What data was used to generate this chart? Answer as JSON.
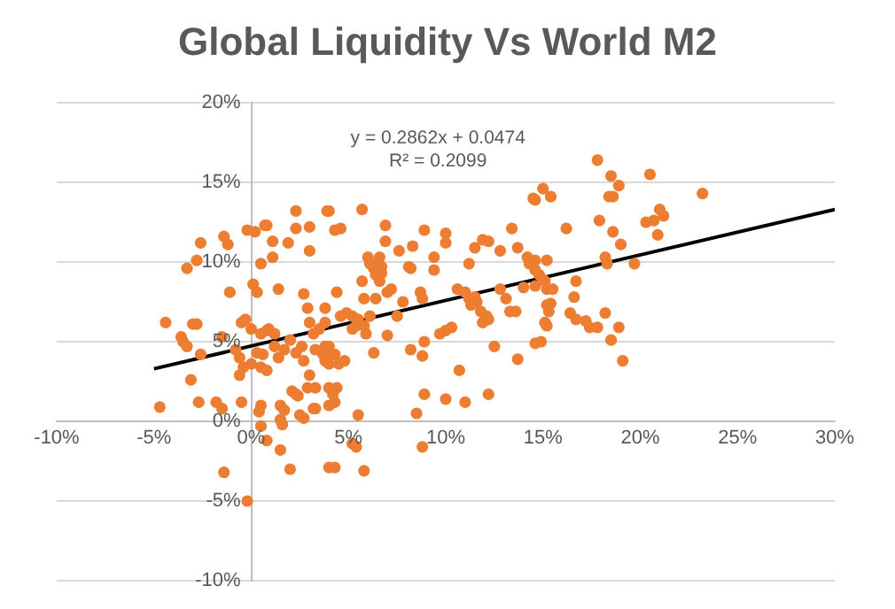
{
  "chart_data": {
    "type": "scatter",
    "title": "Global Liquidity Vs World M2",
    "annotations": [
      "y = 0.2862x + 0.0474",
      "R² = 0.2099"
    ],
    "xlim": [
      -10,
      30
    ],
    "xticks": [
      {
        "value": -10,
        "label": "-10%"
      },
      {
        "value": -5,
        "label": "-5%"
      },
      {
        "value": 0,
        "label": "0%"
      },
      {
        "value": 5,
        "label": "5%"
      },
      {
        "value": 10,
        "label": "10%"
      },
      {
        "value": 15,
        "label": "15%"
      },
      {
        "value": 20,
        "label": "20%"
      },
      {
        "value": 25,
        "label": "25%"
      },
      {
        "value": 30,
        "label": "30%"
      }
    ],
    "ylim": [
      -10,
      20
    ],
    "yticks": [
      {
        "value": -10,
        "label": "-10%"
      },
      {
        "value": -5,
        "label": "-5%"
      },
      {
        "value": 0,
        "label": "0%"
      },
      {
        "value": 5,
        "label": "5%"
      },
      {
        "value": 10,
        "label": "10%"
      },
      {
        "value": 15,
        "label": "15%"
      },
      {
        "value": 20,
        "label": "20%"
      }
    ],
    "grid": "y",
    "marker": "circle",
    "series": [
      {
        "type": "scatter",
        "color": "#ed7d31",
        "x": [
          -4.4,
          -4.7,
          -3.3,
          -2.8,
          -2.6,
          -1.4,
          -1.2,
          -3.6,
          -3.3,
          -3.5,
          -3.0,
          -2.8,
          -2.6,
          -3.1,
          -2.7,
          -1.8,
          -1.5,
          -1.5,
          -1.1,
          -1.4,
          -0.2,
          -0.5,
          -0.6,
          -0.4,
          -0.6,
          -0.8,
          -0.5,
          -0.3,
          -0.2,
          0.2,
          0.7,
          0.8,
          0.5,
          1.1,
          1.1,
          0.1,
          0.3,
          1.4,
          2.3,
          2.3,
          1.9,
          3.0,
          3.0,
          4.0,
          4.3,
          2.7,
          2.9,
          3.0,
          0.0,
          0.5,
          0.8,
          0.9,
          1.2,
          0.3,
          0.6,
          0.8,
          0.5,
          0.0,
          1.2,
          1.4,
          1.7,
          2.0,
          2.3,
          2.6,
          2.7,
          3.0,
          3.3,
          2.9,
          2.1,
          2.4,
          2.3,
          0.5,
          0.4,
          0.5,
          0.8,
          1.5,
          1.7,
          1.5,
          1.6,
          2.5,
          2.7,
          3.3,
          1.5,
          2.0,
          4.3,
          3.3,
          3.7,
          4.0,
          4.1,
          4.3,
          4.4,
          3.8,
          3.9,
          4.6,
          5.7,
          6.9,
          6.9,
          6.0,
          6.1,
          6.3,
          6.4,
          6.6,
          6.7,
          6.4,
          6.6,
          6.7,
          5.7,
          5.8,
          6.4,
          7.0,
          7.2,
          7.6,
          8.1,
          8.2,
          8.3,
          8.9,
          9.4,
          10.0,
          10.0,
          9.4,
          8.7,
          8.8,
          7.5,
          7.8,
          4.6,
          4.9,
          5.2,
          5.5,
          5.2,
          5.4,
          5.8,
          6.1,
          5.9,
          3.8,
          3.5,
          3.2,
          3.8,
          4.0,
          4.3,
          3.8,
          4.8,
          4.5,
          6.3,
          7.0,
          8.2,
          8.8,
          8.9,
          9.7,
          10.0,
          10.3,
          4.0,
          4.2,
          4.4,
          3.2,
          4.0,
          5.5,
          8.9,
          8.5,
          10.0,
          11.0,
          12.2,
          10.7,
          12.5,
          13.7,
          5.2,
          5.4,
          5.8,
          4.0,
          8.8,
          10.6,
          11.0,
          11.2,
          11.3,
          11.5,
          11.6,
          11.8,
          12.1,
          12.2,
          11.9,
          11.2,
          11.5,
          11.9,
          12.2,
          12.8,
          12.8,
          13.1,
          13.3,
          13.6,
          14.0,
          14.3,
          14.6,
          14.8,
          15.1,
          15.2,
          15.2,
          15.1,
          13.4,
          13.7,
          14.2,
          14.6,
          14.9,
          14.5,
          15.0,
          15.4,
          15.2,
          14.6,
          16.2,
          17.8,
          18.5,
          18.9,
          18.4,
          18.6,
          17.9,
          18.6,
          19.0,
          18.2,
          18.3,
          19.7,
          20.5,
          21.0,
          21.2,
          20.7,
          20.3,
          20.9,
          23.2,
          14.6,
          14.6,
          15.0,
          16.7,
          16.6,
          16.4,
          16.7,
          15.5,
          15.4,
          15.3,
          15.2,
          17.2,
          17.4,
          17.8,
          18.2,
          18.9,
          18.5,
          19.1
        ],
        "values": [
          6.2,
          0.9,
          9.6,
          10.1,
          11.2,
          11.6,
          11.1,
          5.3,
          4.7,
          5.0,
          6.1,
          6.1,
          4.2,
          2.6,
          1.2,
          1.2,
          0.8,
          5.3,
          8.1,
          -3.2,
          -5.0,
          1.2,
          2.9,
          3.4,
          4.0,
          4.5,
          6.2,
          6.4,
          12.0,
          11.9,
          12.3,
          12.3,
          9.9,
          10.3,
          11.3,
          8.6,
          8.1,
          8.3,
          13.2,
          12.1,
          11.2,
          12.2,
          10.7,
          13.2,
          12.0,
          8.0,
          7.1,
          6.2,
          5.8,
          5.5,
          5.7,
          5.8,
          5.5,
          4.3,
          4.2,
          3.2,
          3.4,
          3.6,
          4.7,
          4.0,
          4.5,
          5.1,
          4.3,
          4.7,
          3.8,
          2.9,
          2.1,
          2.1,
          1.9,
          1.6,
          1.7,
          1.0,
          0.6,
          -0.3,
          -1.2,
          1.0,
          0.7,
          0.1,
          -0.2,
          0.4,
          0.2,
          0.8,
          -1.8,
          -3.0,
          -2.9,
          4.5,
          4.2,
          3.6,
          4.2,
          1.2,
          8.1,
          7.1,
          13.2,
          12.1,
          13.3,
          12.3,
          11.3,
          10.3,
          9.9,
          9.6,
          9.9,
          10.3,
          9.7,
          9.2,
          8.8,
          9.3,
          8.8,
          7.7,
          7.7,
          8.1,
          8.3,
          10.7,
          9.7,
          9.6,
          11.0,
          12.0,
          10.3,
          11.8,
          11.2,
          9.5,
          8.1,
          7.7,
          6.6,
          7.5,
          6.6,
          6.8,
          6.6,
          6.4,
          5.8,
          6.0,
          6.0,
          6.6,
          5.5,
          6.2,
          5.8,
          5.5,
          4.7,
          4.7,
          4.2,
          3.8,
          3.8,
          3.6,
          4.3,
          5.4,
          4.5,
          4.1,
          5.0,
          5.5,
          5.7,
          5.9,
          2.1,
          1.7,
          2.1,
          0.8,
          1.0,
          0.4,
          1.7,
          0.5,
          1.4,
          1.2,
          1.7,
          3.2,
          4.7,
          3.9,
          -1.4,
          -1.6,
          -3.1,
          -2.9,
          -1.6,
          8.3,
          8.1,
          7.7,
          7.3,
          7.8,
          7.5,
          6.9,
          6.6,
          6.4,
          6.2,
          9.9,
          10.9,
          11.4,
          11.3,
          10.7,
          8.3,
          7.7,
          6.9,
          6.9,
          8.4,
          9.9,
          10.1,
          9.2,
          8.8,
          8.3,
          7.3,
          6.2,
          12.1,
          10.9,
          10.3,
          4.9,
          5.0,
          14.0,
          14.6,
          14.1,
          10.1,
          13.9,
          12.1,
          16.4,
          15.4,
          14.8,
          14.1,
          14.1,
          12.6,
          11.9,
          11.1,
          10.3,
          9.9,
          9.9,
          15.5,
          13.3,
          12.9,
          12.6,
          12.5,
          11.7,
          14.3,
          9.5,
          8.5,
          8.9,
          8.8,
          7.8,
          6.8,
          6.4,
          8.3,
          7.4,
          6.9,
          6.0,
          6.3,
          5.9,
          5.9,
          6.8,
          5.9,
          5.1,
          3.8
        ]
      },
      {
        "type": "line",
        "color": "#000000",
        "marker": "none",
        "x": [
          -5,
          30
        ],
        "values": [
          3.3,
          13.3
        ]
      }
    ]
  }
}
